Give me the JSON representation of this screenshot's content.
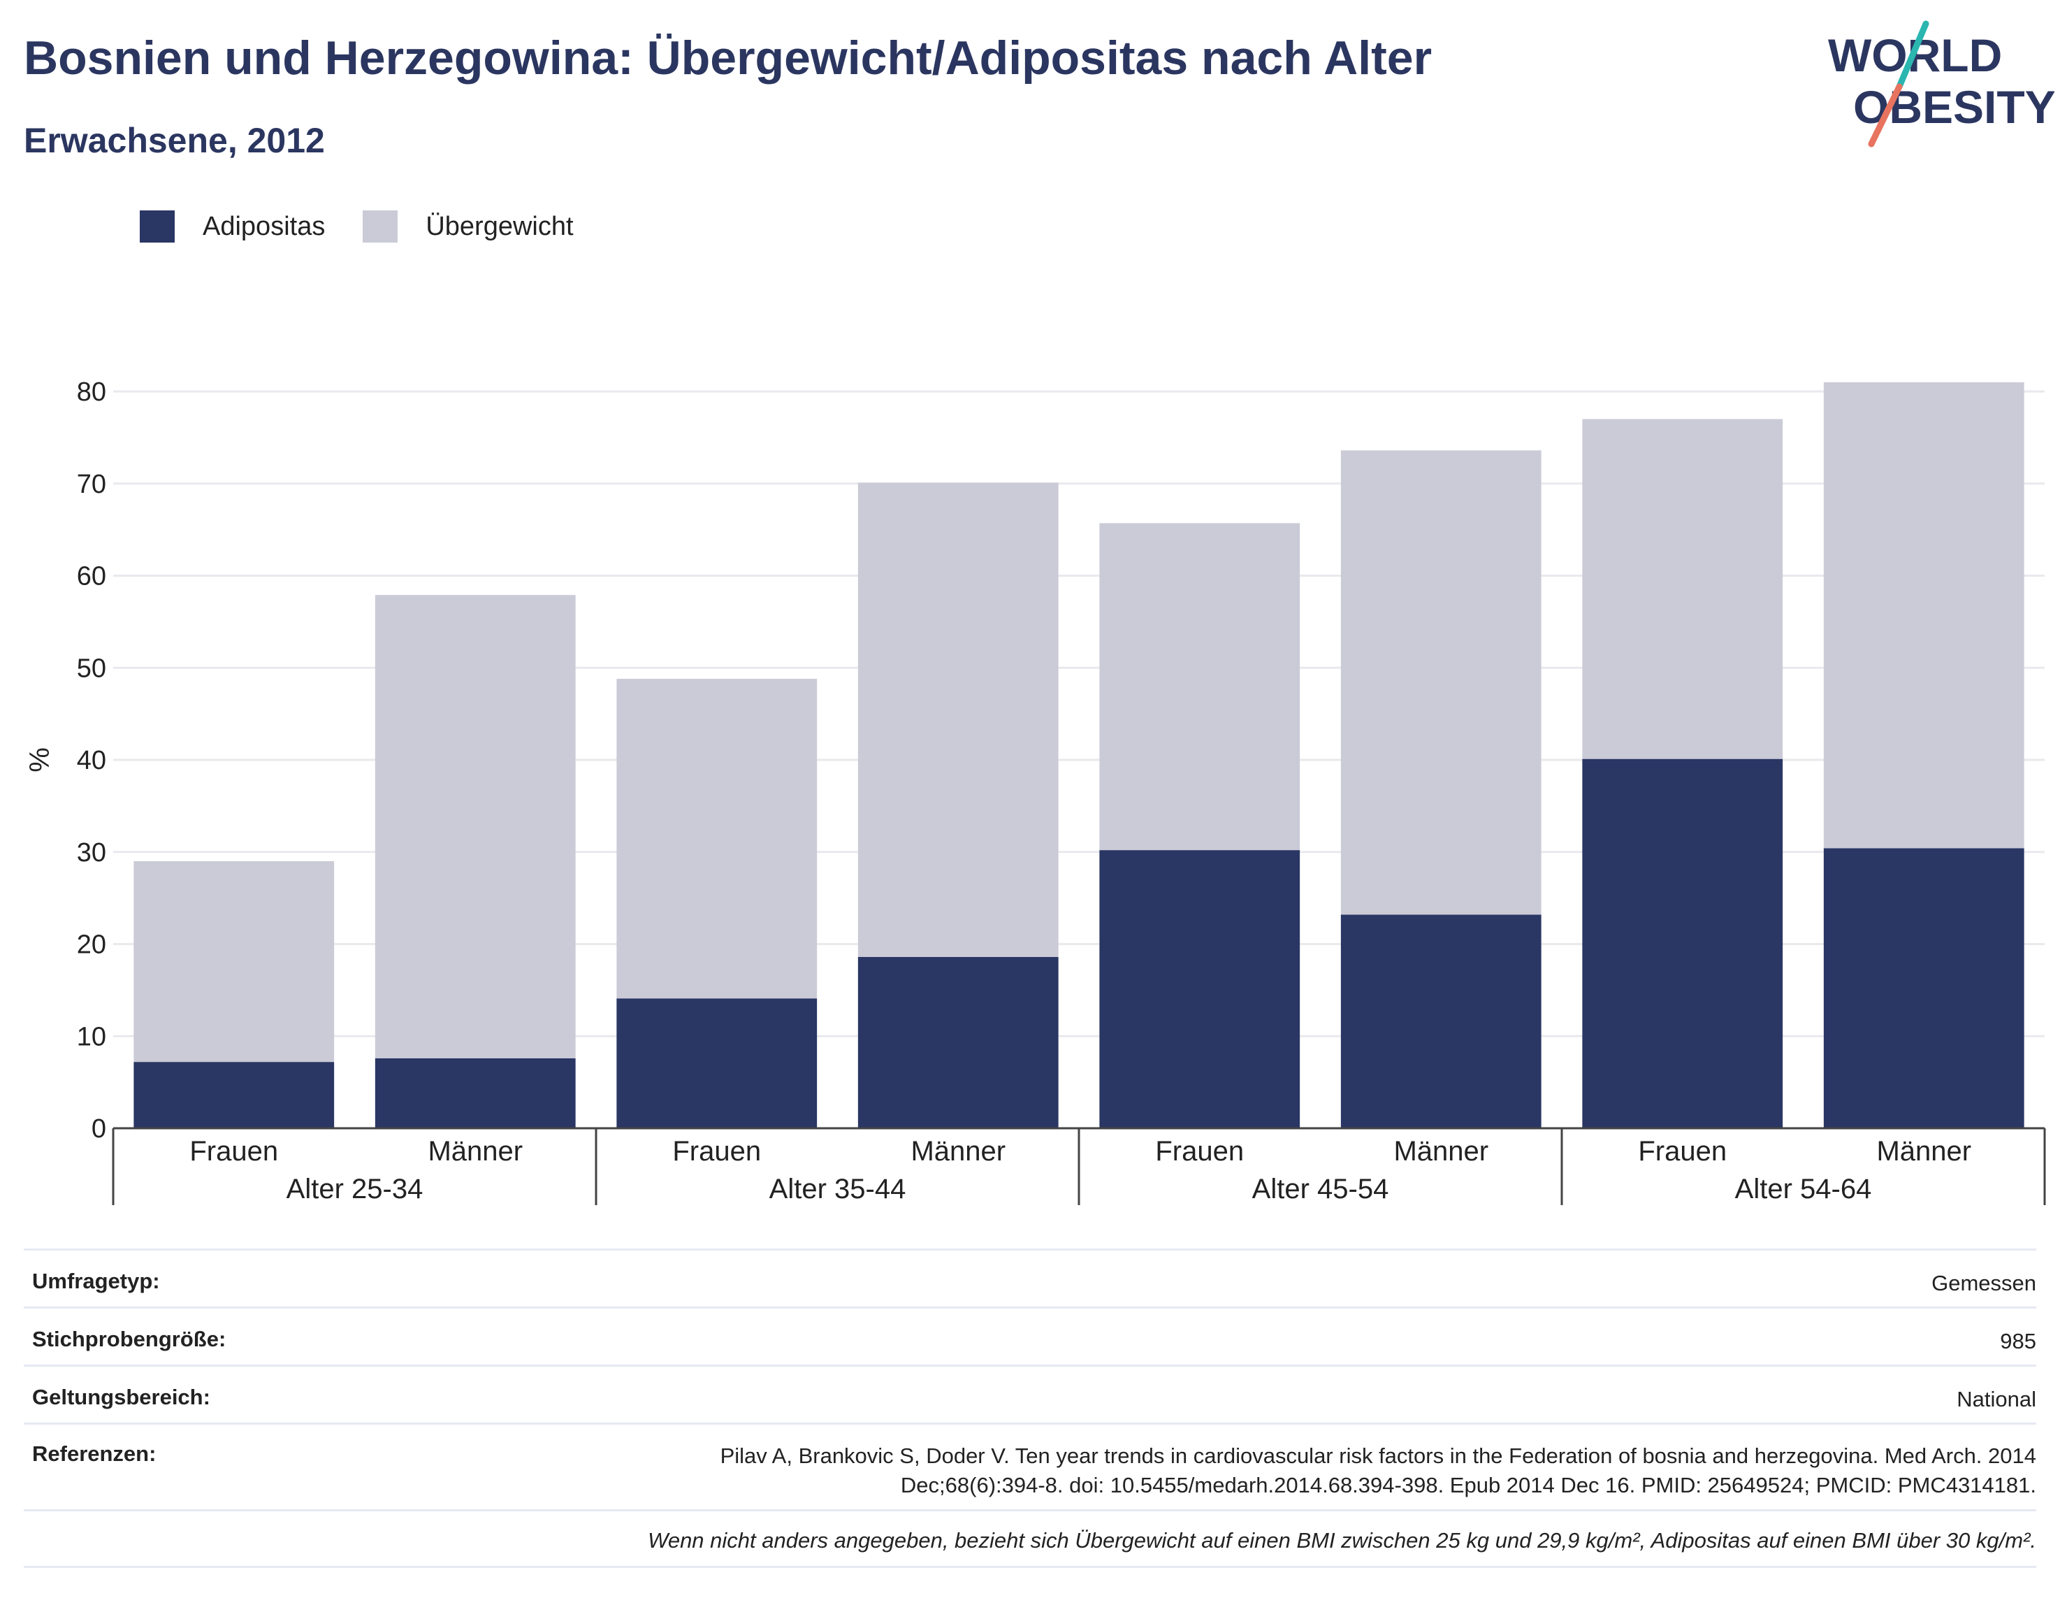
{
  "header": {
    "title": "Bosnien und Herzegowina: Übergewicht/Adipositas nach Alter",
    "subtitle": "Erwachsene, 2012"
  },
  "logo": {
    "line1": "WORLD",
    "line2": "OBESITY",
    "accent_teal": "#2bb6b0",
    "accent_coral": "#e8735f"
  },
  "colors": {
    "adipositas": "#2a3664",
    "uebergewicht": "#cacbd7",
    "title": "#2b3660",
    "grid": "#e9e9ee",
    "axis": "#444444"
  },
  "chart_data": {
    "type": "bar",
    "stacked": true,
    "ylabel": "%",
    "ylim": [
      0,
      80
    ],
    "yticks": [
      0,
      10,
      20,
      30,
      40,
      50,
      60,
      70,
      80
    ],
    "grid": true,
    "legend": "top-left",
    "groups": [
      "Alter 25-34",
      "Alter 35-44",
      "Alter 45-54",
      "Alter 54-64"
    ],
    "subcategories": [
      "Frauen",
      "Männer"
    ],
    "categories": [
      "Frauen",
      "Männer",
      "Frauen",
      "Männer",
      "Frauen",
      "Männer",
      "Frauen",
      "Männer"
    ],
    "series": [
      {
        "name": "Adipositas",
        "values": [
          7.2,
          7.6,
          14.1,
          18.6,
          30.2,
          23.2,
          40.1,
          30.4
        ]
      },
      {
        "name": "Übergewicht",
        "values": [
          21.8,
          50.3,
          34.7,
          51.5,
          35.5,
          50.4,
          36.9,
          50.6
        ]
      }
    ]
  },
  "meta": {
    "rows": [
      {
        "label": "Umfragetyp:",
        "value": "Gemessen"
      },
      {
        "label": "Stichprobengröße:",
        "value": "985"
      },
      {
        "label": "Geltungsbereich:",
        "value": "National"
      }
    ],
    "references_label": "Referenzen:",
    "references_line1": "Pilav A, Brankovic S, Doder V. Ten year trends in cardiovascular risk factors in the Federation of bosnia and herzegovina. Med Arch. 2014",
    "references_line2": "Dec;68(6):394-8. doi: 10.5455/medarh.2014.68.394-398. Epub 2014 Dec 16. PMID: 25649524; PMCID: PMC4314181.",
    "note": "Wenn nicht anders angegeben, bezieht sich Übergewicht auf einen BMI zwischen 25 kg und 29,9 kg/m², Adipositas auf einen BMI über 30 kg/m²."
  }
}
